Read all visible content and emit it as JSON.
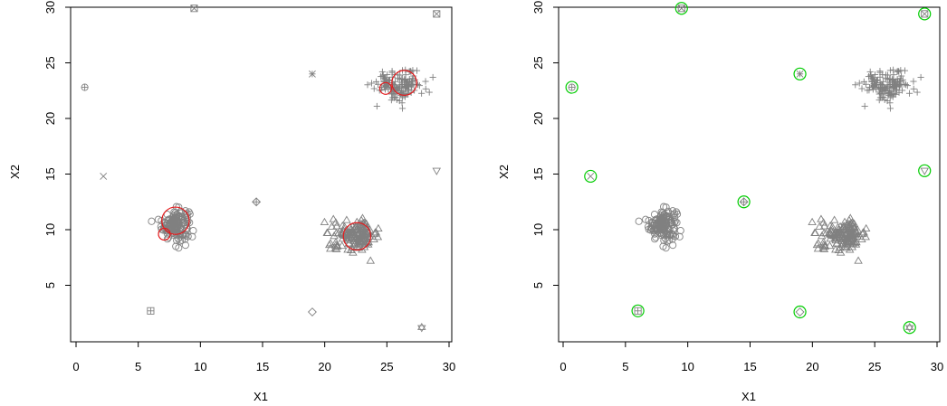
{
  "chart_data": [
    {
      "type": "scatter",
      "xlabel": "X1",
      "ylabel": "X2",
      "xlim": [
        0,
        30
      ],
      "ylim": [
        0,
        30
      ],
      "xticks": [
        "0",
        "5",
        "10",
        "15",
        "20",
        "25",
        "30"
      ],
      "yticks": [
        "5",
        "10",
        "15",
        "20",
        "25",
        "30"
      ],
      "point_color": "#808080",
      "highlight_color": "#e41a1c",
      "clusters": [
        {
          "center": [
            8.0,
            10.5
          ],
          "spread": [
            0.55,
            0.7
          ],
          "count": 150,
          "symbol": "circle"
        },
        {
          "center": [
            22.5,
            9.5
          ],
          "spread": [
            0.95,
            0.65
          ],
          "count": 150,
          "symbol": "triangle"
        },
        {
          "center": [
            26.0,
            23.0
          ],
          "spread": [
            0.95,
            0.65
          ],
          "count": 150,
          "symbol": "plus"
        }
      ],
      "outliers": [
        {
          "x": 0.7,
          "y": 22.8,
          "symbol": "circle-plus"
        },
        {
          "x": 2.2,
          "y": 14.8,
          "symbol": "cross"
        },
        {
          "x": 9.5,
          "y": 29.9,
          "symbol": "square-cross"
        },
        {
          "x": 14.5,
          "y": 12.5,
          "symbol": "diamond-plus"
        },
        {
          "x": 19.0,
          "y": 24.0,
          "symbol": "asterisk"
        },
        {
          "x": 6.0,
          "y": 2.7,
          "symbol": "square-plus"
        },
        {
          "x": 19.0,
          "y": 2.6,
          "symbol": "diamond"
        },
        {
          "x": 27.8,
          "y": 1.2,
          "symbol": "star-of-david"
        },
        {
          "x": 29.0,
          "y": 29.4,
          "symbol": "square-cross"
        },
        {
          "x": 29.0,
          "y": 15.3,
          "symbol": "triangle-down"
        },
        {
          "x": 28.7,
          "y": 23.7,
          "symbol": "plus"
        },
        {
          "x": 24.2,
          "y": 21.1,
          "symbol": "plus"
        }
      ],
      "highlight_circles": [
        {
          "x": 8.0,
          "y": 10.8,
          "radius": 1.1
        },
        {
          "x": 7.1,
          "y": 9.6,
          "radius": 0.45
        },
        {
          "x": 22.6,
          "y": 9.4,
          "radius": 1.1
        },
        {
          "x": 26.4,
          "y": 23.2,
          "radius": 1.0
        },
        {
          "x": 24.9,
          "y": 22.7,
          "radius": 0.45
        }
      ]
    },
    {
      "type": "scatter",
      "xlabel": "X1",
      "ylabel": "X2",
      "xlim": [
        0,
        30
      ],
      "ylim": [
        0,
        30
      ],
      "xticks": [
        "0",
        "5",
        "10",
        "15",
        "20",
        "25",
        "30"
      ],
      "yticks": [
        "5",
        "10",
        "15",
        "20",
        "25",
        "30"
      ],
      "point_color": "#808080",
      "highlight_color": "#00cc00",
      "clusters": [
        {
          "center": [
            8.0,
            10.5
          ],
          "spread": [
            0.55,
            0.7
          ],
          "count": 150,
          "symbol": "circle"
        },
        {
          "center": [
            22.5,
            9.5
          ],
          "spread": [
            0.95,
            0.65
          ],
          "count": 150,
          "symbol": "triangle"
        },
        {
          "center": [
            26.0,
            23.0
          ],
          "spread": [
            0.95,
            0.65
          ],
          "count": 150,
          "symbol": "plus"
        }
      ],
      "outliers": [
        {
          "x": 0.7,
          "y": 22.8,
          "symbol": "circle-plus"
        },
        {
          "x": 2.2,
          "y": 14.8,
          "symbol": "cross"
        },
        {
          "x": 9.5,
          "y": 29.9,
          "symbol": "square-cross"
        },
        {
          "x": 14.5,
          "y": 12.5,
          "symbol": "diamond-plus"
        },
        {
          "x": 19.0,
          "y": 24.0,
          "symbol": "asterisk"
        },
        {
          "x": 6.0,
          "y": 2.7,
          "symbol": "square-plus"
        },
        {
          "x": 19.0,
          "y": 2.6,
          "symbol": "diamond"
        },
        {
          "x": 27.8,
          "y": 1.2,
          "symbol": "star-of-david"
        },
        {
          "x": 29.0,
          "y": 29.4,
          "symbol": "square-cross"
        },
        {
          "x": 29.0,
          "y": 15.3,
          "symbol": "triangle-down"
        },
        {
          "x": 28.7,
          "y": 23.7,
          "symbol": "plus"
        },
        {
          "x": 24.2,
          "y": 21.1,
          "symbol": "plus"
        }
      ],
      "highlight_circles": [
        {
          "x": 0.7,
          "y": 22.8,
          "radius": 0.45
        },
        {
          "x": 2.2,
          "y": 14.8,
          "radius": 0.45
        },
        {
          "x": 9.5,
          "y": 29.9,
          "radius": 0.45
        },
        {
          "x": 14.5,
          "y": 12.5,
          "radius": 0.45
        },
        {
          "x": 19.0,
          "y": 24.0,
          "radius": 0.45
        },
        {
          "x": 6.0,
          "y": 2.7,
          "radius": 0.45
        },
        {
          "x": 19.0,
          "y": 2.6,
          "radius": 0.45
        },
        {
          "x": 27.8,
          "y": 1.2,
          "radius": 0.45
        },
        {
          "x": 29.0,
          "y": 29.4,
          "radius": 0.45
        },
        {
          "x": 29.0,
          "y": 15.3,
          "radius": 0.45
        }
      ]
    }
  ]
}
